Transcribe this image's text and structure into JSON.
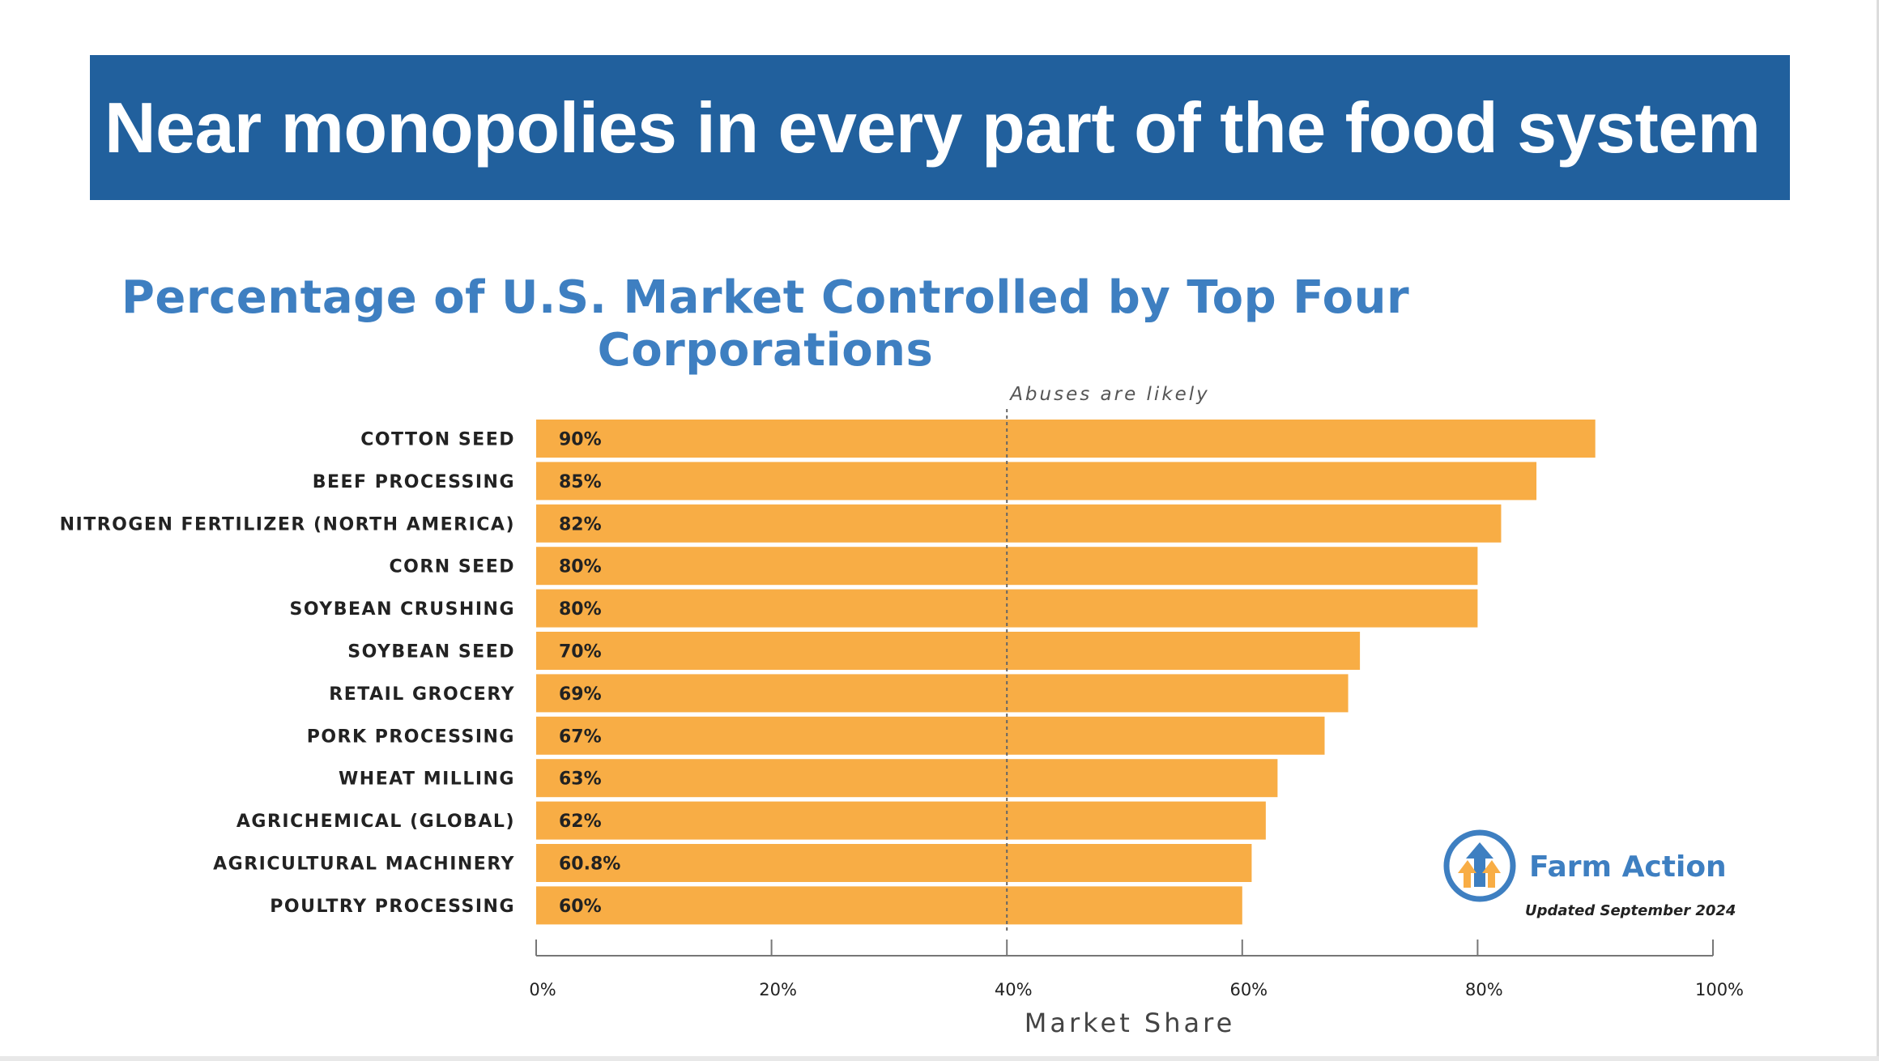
{
  "header": {
    "title": "Near monopolies in every part of the food system"
  },
  "chart_data": {
    "type": "bar",
    "orientation": "horizontal",
    "title": "Percentage of U.S. Market Controlled by Top Four Corporations",
    "categories": [
      "COTTON SEED",
      "BEEF PROCESSING",
      "NITROGEN FERTILIZER (NORTH AMERICA)",
      "CORN SEED",
      "SOYBEAN CRUSHING",
      "SOYBEAN SEED",
      "RETAIL GROCERY",
      "PORK PROCESSING",
      "WHEAT MILLING",
      "AGRICHEMICAL (GLOBAL)",
      "AGRICULTURAL MACHINERY",
      "POULTRY PROCESSING"
    ],
    "values": [
      90,
      85,
      82,
      80,
      80,
      70,
      69,
      67,
      63,
      62,
      60.8,
      60
    ],
    "value_labels": [
      "90%",
      "85%",
      "82%",
      "80%",
      "80%",
      "70%",
      "69%",
      "67%",
      "63%",
      "62%",
      "60.8%",
      "60%"
    ],
    "xlabel": "Market Share",
    "ylabel": "",
    "xlim": [
      0,
      100
    ],
    "xticks": [
      0,
      20,
      40,
      60,
      80,
      100
    ],
    "xtick_labels": [
      "0%",
      "20%",
      "40%",
      "60%",
      "80%",
      "100%"
    ],
    "threshold": {
      "value": 40,
      "label": "Abuses are likely"
    },
    "bar_color": "#f8ad45"
  },
  "logo": {
    "name": "Farm Action",
    "updated": "Updated September 2024",
    "color": "#3e7fc1",
    "icon": "farm-action-arrow-icon"
  },
  "colors": {
    "banner": "#21609d",
    "title": "#3e7fc1",
    "bar": "#f8ad45"
  }
}
